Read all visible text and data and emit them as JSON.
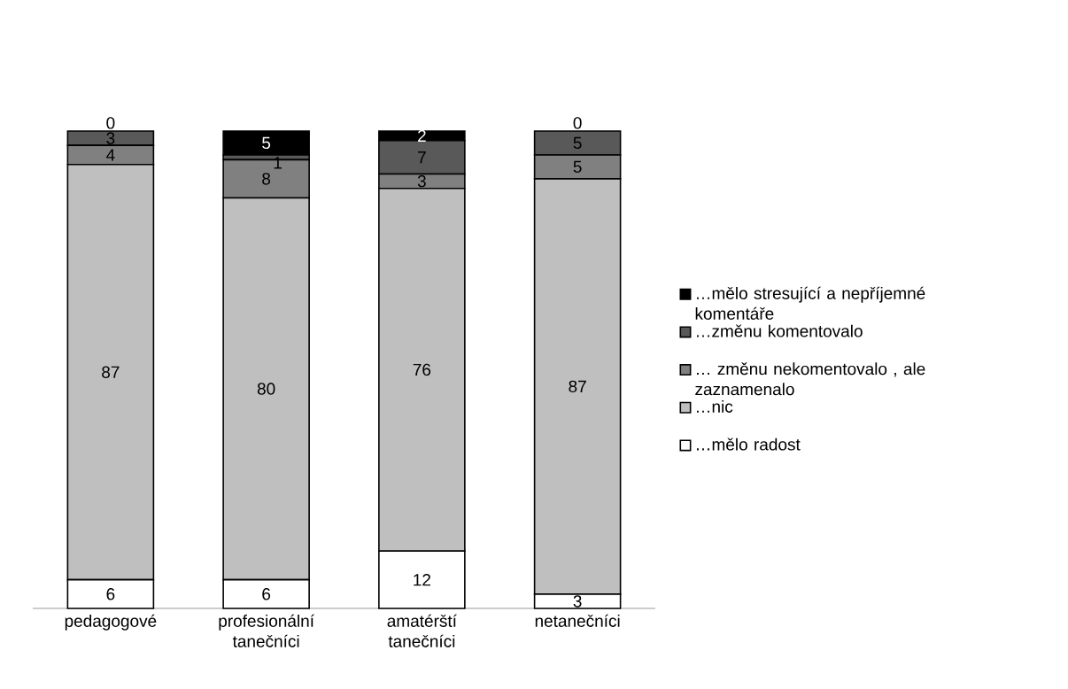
{
  "chart_data": {
    "type": "bar",
    "stacked": true,
    "data_labels": true,
    "legend": "right",
    "tick_labels": "x",
    "categories": [
      "pedagogové",
      "profesionální tanečníci",
      "amatérští tanečníci",
      "netanečníci"
    ],
    "series": [
      {
        "name": "…mělo radost",
        "color": "#ffffff",
        "values": [
          6,
          6,
          12,
          3
        ]
      },
      {
        "name": "…nic",
        "color": "#bfbfbf",
        "values": [
          87,
          80,
          76,
          87
        ]
      },
      {
        "name": "… změnu nekomentovalo , ale zaznamenalo",
        "color": "#808080",
        "values": [
          4,
          8,
          3,
          5
        ]
      },
      {
        "name": "…změnu komentovalo",
        "color": "#595959",
        "values": [
          3,
          1,
          7,
          5
        ]
      },
      {
        "name": "…mělo stresující a nepříjemné komentáře",
        "color": "#000000",
        "values": [
          0,
          5,
          2,
          0
        ]
      }
    ]
  }
}
